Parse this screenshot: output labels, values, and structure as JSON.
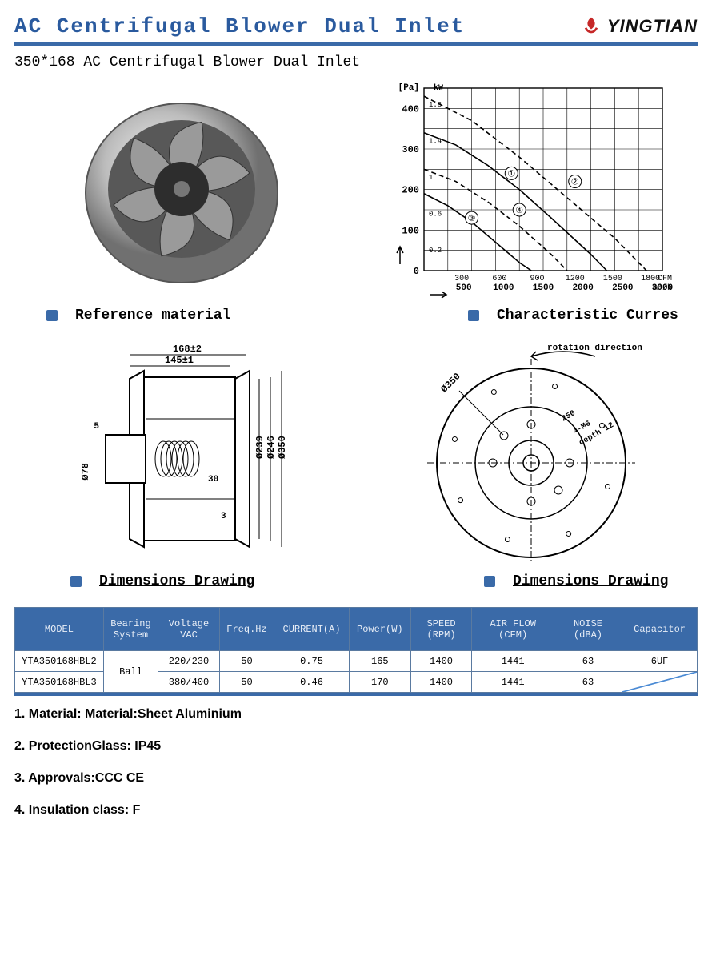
{
  "header": {
    "title": "AC Centrifugal Blower Dual Inlet",
    "brand": "YINGTIAN"
  },
  "subtitle": "350*168 AC Centrifugal Blower Dual Inlet",
  "captions": {
    "ref_material": "Reference material",
    "char_curves": "Characteristic Curres",
    "dim_drawing_left": "Dimensions Drawing",
    "dim_drawing_right": "Dimensions Drawing"
  },
  "chart": {
    "type": "line",
    "y_label_unit": "[Pa]",
    "y_right_label": "kW",
    "x_top_unit": "CFM",
    "x_bottom_unit": "m³/h",
    "y_ticks": [
      0,
      100,
      200,
      300,
      400
    ],
    "y_right_ticks": [
      0.2,
      0.6,
      1.0,
      1.4,
      1.8
    ],
    "x_top_ticks": [
      300,
      600,
      900,
      1200,
      1500,
      1800
    ],
    "x_bottom_ticks": [
      500,
      1000,
      1500,
      2000,
      2500,
      3000
    ],
    "grid_color": "#000000",
    "line_color": "#000000",
    "background": "#ffffff",
    "curves": {
      "1": {
        "label": "①",
        "dash": "none",
        "points": [
          [
            0,
            340
          ],
          [
            400,
            310
          ],
          [
            800,
            260
          ],
          [
            1200,
            200
          ],
          [
            1600,
            130
          ],
          [
            2100,
            40
          ],
          [
            2300,
            0
          ]
        ]
      },
      "2": {
        "label": "②",
        "dash": "6,4",
        "points": [
          [
            0,
            430
          ],
          [
            600,
            370
          ],
          [
            1200,
            280
          ],
          [
            1800,
            180
          ],
          [
            2400,
            80
          ],
          [
            2800,
            0
          ]
        ]
      },
      "3": {
        "label": "③",
        "dash": "none",
        "points": [
          [
            0,
            190
          ],
          [
            300,
            160
          ],
          [
            600,
            120
          ],
          [
            900,
            70
          ],
          [
            1200,
            20
          ],
          [
            1350,
            0
          ]
        ]
      },
      "4": {
        "label": "④",
        "dash": "6,4",
        "points": [
          [
            0,
            250
          ],
          [
            400,
            220
          ],
          [
            800,
            170
          ],
          [
            1200,
            110
          ],
          [
            1600,
            40
          ],
          [
            1800,
            0
          ]
        ]
      }
    }
  },
  "side_drawing": {
    "dim_top1": "168±2",
    "dim_top2": "145±1",
    "dim_left1": "5",
    "dim_left2": "Ø78",
    "dim_inner1": "30",
    "dim_inner2": "3",
    "dim_vert1": "Ø239",
    "dim_vert2": "Ø246",
    "dim_vert3": "Ø350"
  },
  "front_drawing": {
    "rotation_label": "rotation direction",
    "outer_dia": "Ø350",
    "inner_note1": "250",
    "inner_note2": "4-M6",
    "inner_note3": "depth 12"
  },
  "table": {
    "columns": [
      "MODEL",
      "Bearing System",
      "Voltage VAC",
      "Freq.Hz",
      "CURRENT(A)",
      "Power(W)",
      "SPEED (RPM)",
      "AIR FLOW (CFM)",
      "NOISE (dBA)",
      "Capacitor"
    ],
    "col_widths": [
      "13%",
      "8%",
      "9%",
      "8%",
      "11%",
      "9%",
      "9%",
      "12%",
      "10%",
      "11%"
    ],
    "header_bg": "#3a6aa8",
    "header_fg": "#e8eef7",
    "rows": [
      {
        "model": "YTA350168HBL2",
        "bearing": "Ball",
        "voltage": "220/230",
        "freq": "50",
        "current": "0.75",
        "power": "165",
        "speed": "1400",
        "airflow": "1441",
        "noise": "63",
        "cap": "6UF"
      },
      {
        "model": "YTA350168HBL3",
        "bearing": "Ball",
        "voltage": "380/400",
        "freq": "50",
        "current": "0.46",
        "power": "170",
        "speed": "1400",
        "airflow": "1441",
        "noise": "63",
        "cap": "—diag—"
      }
    ],
    "bearing_merged": true
  },
  "notes": [
    "1. Material: Material:Sheet Aluminium",
    "2. ProtectionGlass: IP45",
    "3.  Approvals:CCC CE",
    "4.  Insulation class: F"
  ],
  "colors": {
    "accent": "#3a6aa8",
    "title": "#2a5a9e",
    "diag_stroke": "#4a8ad4"
  }
}
